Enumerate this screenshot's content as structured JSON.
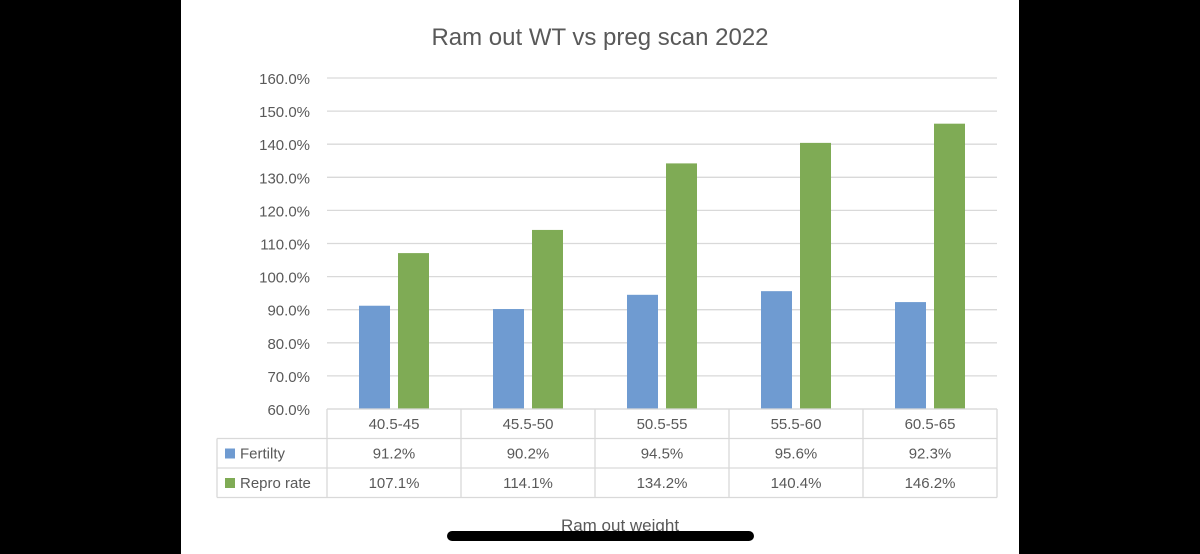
{
  "chart_data": {
    "type": "bar",
    "title": "Ram out WT vs preg scan 2022",
    "xlabel": "Ram out weight",
    "ylabel": "",
    "categories": [
      "40.5-45",
      "45.5-50",
      "50.5-55",
      "55.5-60",
      "60.5-65"
    ],
    "ylim": [
      60,
      160
    ],
    "ytick_step": 10,
    "y_tick_labels": [
      "60.0%",
      "70.0%",
      "80.0%",
      "90.0%",
      "100.0%",
      "110.0%",
      "120.0%",
      "130.0%",
      "140.0%",
      "150.0%",
      "160.0%"
    ],
    "grid": true,
    "legend": "data-table",
    "series": [
      {
        "name": "Fertilty",
        "color": "#6f9bd1",
        "values": [
          91.2,
          90.2,
          94.5,
          95.6,
          92.3
        ],
        "labels": [
          "91.2%",
          "90.2%",
          "94.5%",
          "95.6%",
          "92.3%"
        ]
      },
      {
        "name": "Repro rate",
        "color": "#7fab55",
        "values": [
          107.1,
          114.1,
          134.2,
          140.4,
          146.2
        ],
        "labels": [
          "107.1%",
          "114.1%",
          "134.2%",
          "140.4%",
          "146.2%"
        ]
      }
    ]
  }
}
